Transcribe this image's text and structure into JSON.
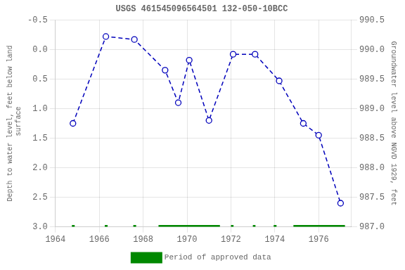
{
  "chart_data": {
    "type": "line",
    "title": "USGS 461545096564501 132-050-10BCC",
    "ylabel": "Depth to water level, feet below land\n surface",
    "y2label": "Groundwater level above NGVD 1929, feet",
    "x": [
      1964.8,
      1966.3,
      1967.6,
      1969.0,
      1969.6,
      1970.1,
      1971.0,
      1972.1,
      1973.1,
      1974.2,
      1975.3,
      1976.0,
      1977.0
    ],
    "series": [
      {
        "values": [
          1.25,
          -0.22,
          -0.17,
          0.35,
          0.9,
          0.18,
          1.2,
          0.08,
          0.08,
          0.53,
          1.25,
          1.45,
          2.6
        ],
        "color": "#0000BB",
        "line_style": "dashed",
        "marker": "open circle"
      },
      {
        "name": "Period of approved data",
        "color": "#008800",
        "line_style": "solid",
        "level": 3.0,
        "periods": [
          [
            1964.75,
            1964.88
          ],
          [
            1966.25,
            1966.38
          ],
          [
            1967.55,
            1967.68
          ],
          [
            1968.7,
            1971.5
          ],
          [
            1972.0,
            1972.12
          ],
          [
            1973.0,
            1973.12
          ],
          [
            1973.95,
            1974.08
          ],
          [
            1974.85,
            1977.2
          ]
        ]
      }
    ],
    "xlim": [
      1964,
      1977.5
    ],
    "xticks": [
      1964,
      1966,
      1968,
      1970,
      1972,
      1974,
      1976
    ],
    "ylim": [
      3.0,
      -0.5
    ],
    "yticks": [
      -0.5,
      {
        "value": 0,
        "label": "0.0"
      },
      0.5,
      {
        "value": 1,
        "label": "1.0"
      },
      1.5,
      {
        "value": 2,
        "label": "2.0"
      },
      2.5,
      {
        "value": 3,
        "label": "3.0"
      }
    ],
    "y2lim": [
      987.0,
      990.5
    ],
    "y2ticks": [
      990.5,
      {
        "value": 990,
        "label": "990.0"
      },
      989.5,
      {
        "value": 989,
        "label": "989.0"
      },
      988.5,
      {
        "value": 988,
        "label": "988.0"
      },
      987.5,
      {
        "value": 987,
        "label": "987.0"
      }
    ],
    "grid": true,
    "legend": "bottom"
  }
}
